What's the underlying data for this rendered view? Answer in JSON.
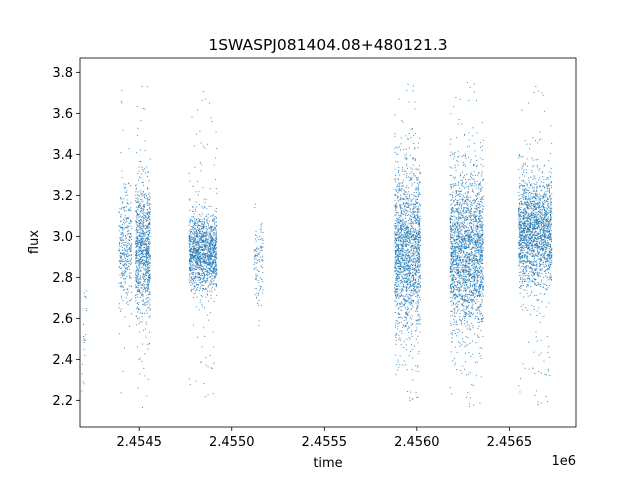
{
  "chart_data": {
    "type": "scatter",
    "title": "1SWASPJ081404.08+480121.3",
    "xlabel": "time",
    "ylabel": "flux",
    "x_offset_label": "1e6",
    "xlim": [
      2.45418,
      2.45686
    ],
    "ylim": [
      2.07,
      3.87
    ],
    "x_ticks": [
      2.4545,
      2.455,
      2.4555,
      2.456,
      2.4565
    ],
    "x_tick_labels": [
      "2.4545",
      "2.4550",
      "2.4555",
      "2.4560",
      "2.4565"
    ],
    "y_ticks": [
      2.2,
      2.4,
      2.6,
      2.8,
      3.0,
      3.2,
      3.4,
      3.6,
      3.8
    ],
    "y_tick_labels": [
      "2.2",
      "2.4",
      "2.6",
      "2.8",
      "3.0",
      "3.2",
      "3.4",
      "3.6",
      "3.8"
    ],
    "grid": false,
    "marker_color": "#1f77b4",
    "clusters": [
      {
        "x_start": 2.45419,
        "x_end": 2.45422,
        "y_center": 2.55,
        "y_spread": 0.22,
        "y_min": 2.17,
        "y_max": 2.74,
        "points": 22
      },
      {
        "x_start": 2.45439,
        "x_end": 2.45446,
        "y_center": 2.93,
        "y_spread": 0.14,
        "y_min": 2.18,
        "y_max": 3.76,
        "points": 340
      },
      {
        "x_start": 2.45448,
        "x_end": 2.45456,
        "y_center": 2.93,
        "y_spread": 0.16,
        "y_min": 2.16,
        "y_max": 3.77,
        "points": 900
      },
      {
        "x_start": 2.45477,
        "x_end": 2.45492,
        "y_center": 2.92,
        "y_spread": 0.09,
        "y_min": 2.2,
        "y_max": 3.71,
        "points": 1400
      },
      {
        "x_start": 2.45512,
        "x_end": 2.45517,
        "y_center": 2.9,
        "y_spread": 0.1,
        "y_min": 2.33,
        "y_max": 3.4,
        "points": 110
      },
      {
        "x_start": 2.45588,
        "x_end": 2.45602,
        "y_center": 2.93,
        "y_spread": 0.2,
        "y_min": 2.18,
        "y_max": 3.76,
        "points": 1700
      },
      {
        "x_start": 2.45618,
        "x_end": 2.45636,
        "y_center": 2.92,
        "y_spread": 0.19,
        "y_min": 2.15,
        "y_max": 3.77,
        "points": 2100
      },
      {
        "x_start": 2.45655,
        "x_end": 2.45673,
        "y_center": 3.02,
        "y_spread": 0.13,
        "y_min": 2.16,
        "y_max": 3.75,
        "points": 1900
      }
    ]
  }
}
